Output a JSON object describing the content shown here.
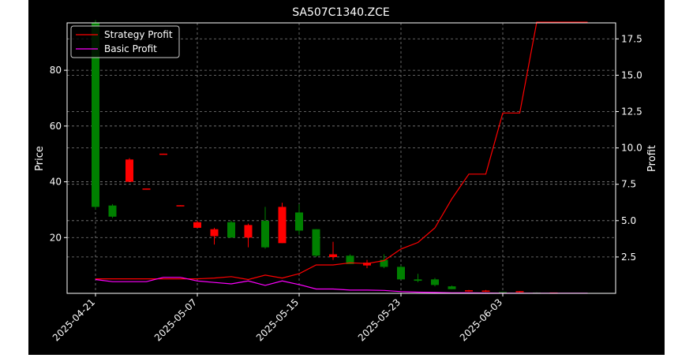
{
  "chart_data": {
    "type": "candlestick",
    "title": "SA507C1340.ZCE",
    "ylabel_left": "Price",
    "ylabel_right": "Profit",
    "x_tick_labels": [
      "2025-04-21",
      "2025-05-07",
      "2025-05-15",
      "2025-05-23",
      "2025-06-03"
    ],
    "x_tick_index": [
      0,
      6,
      12,
      18,
      24
    ],
    "y_left_ticks": [
      20,
      40,
      60,
      80
    ],
    "y_left_lim": [
      0,
      97
    ],
    "y_right_ticks": [
      "2.5",
      "5.0",
      "7.5",
      "10.0",
      "12.5",
      "15.0",
      "17.5"
    ],
    "y_right_lim": [
      0,
      18.6
    ],
    "grid": true,
    "legend_position": "top-left",
    "colors": {
      "up": "#ff0000",
      "down": "#008000",
      "strategy": "#ff0000",
      "basic": "#ff00ff",
      "grid": "#7f7f7f",
      "axes": "#ffffff"
    },
    "candles": [
      {
        "i": 0,
        "open": 97,
        "high": 98,
        "low": 30,
        "close": 31
      },
      {
        "i": 1,
        "open": 31.5,
        "high": 32,
        "low": 27,
        "close": 27.5
      },
      {
        "i": 2,
        "open": 40,
        "high": 48.5,
        "low": 40,
        "close": 48
      },
      {
        "i": 3,
        "open": 37.4,
        "high": 37.6,
        "low": 37.3,
        "close": 37.6
      },
      {
        "i": 4,
        "open": 49.9,
        "high": 50.1,
        "low": 49.8,
        "close": 50.1
      },
      {
        "i": 5,
        "open": 31.4,
        "high": 31.6,
        "low": 31.3,
        "close": 31.6
      },
      {
        "i": 6,
        "open": 23.5,
        "high": 26,
        "low": 23.5,
        "close": 25.5
      },
      {
        "i": 7,
        "open": 20.5,
        "high": 23.5,
        "low": 17.5,
        "close": 23
      },
      {
        "i": 8,
        "open": 25.5,
        "high": 26,
        "low": 20,
        "close": 20
      },
      {
        "i": 9,
        "open": 20,
        "high": 25,
        "low": 16.5,
        "close": 24.5
      },
      {
        "i": 10,
        "open": 26,
        "high": 31,
        "low": 16,
        "close": 16.5
      },
      {
        "i": 11,
        "open": 18,
        "high": 32.5,
        "low": 18,
        "close": 31
      },
      {
        "i": 12,
        "open": 29,
        "high": 32,
        "low": 21,
        "close": 22.5
      },
      {
        "i": 13,
        "open": 23,
        "high": 23,
        "low": 13,
        "close": 13.5
      },
      {
        "i": 14,
        "open": 13,
        "high": 18.5,
        "low": 12,
        "close": 14
      },
      {
        "i": 15,
        "open": 13.5,
        "high": 14,
        "low": 10.5,
        "close": 10.5
      },
      {
        "i": 16,
        "open": 10,
        "high": 12,
        "low": 9,
        "close": 11
      },
      {
        "i": 17,
        "open": 12,
        "high": 14,
        "low": 9,
        "close": 9.5
      },
      {
        "i": 18,
        "open": 9.5,
        "high": 10,
        "low": 5,
        "close": 5
      },
      {
        "i": 19,
        "open": 5,
        "high": 7,
        "low": 4,
        "close": 4.5
      },
      {
        "i": 20,
        "open": 5,
        "high": 5.5,
        "low": 2.5,
        "close": 3
      },
      {
        "i": 21,
        "open": 2.5,
        "high": 2.8,
        "low": 1.5,
        "close": 1.5
      },
      {
        "i": 22,
        "open": 0.8,
        "high": 1.2,
        "low": 0.6,
        "close": 1.1
      },
      {
        "i": 23,
        "open": 0.8,
        "high": 1.2,
        "low": 0.5,
        "close": 1.0
      },
      {
        "i": 24,
        "open": 0.5,
        "high": 0.6,
        "low": 0.3,
        "close": 0.3
      },
      {
        "i": 25,
        "open": 0.4,
        "high": 0.8,
        "low": 0.3,
        "close": 0.8
      },
      {
        "i": 26,
        "open": 0.3,
        "high": 0.4,
        "low": 0.2,
        "close": 0.2
      },
      {
        "i": 27,
        "open": 0.2,
        "high": 0.3,
        "low": 0.15,
        "close": 0.3
      }
    ],
    "series": [
      {
        "name": "Strategy Profit",
        "x": [
          0,
          1,
          2,
          3,
          4,
          5,
          6,
          7,
          8,
          9,
          10,
          11,
          12,
          13,
          14,
          15,
          16,
          17,
          18,
          19,
          20,
          21,
          22,
          23,
          24,
          25,
          26,
          27,
          28,
          29
        ],
        "values": [
          1.0,
          1.0,
          1.0,
          1.0,
          1.0,
          1.0,
          1.0,
          1.05,
          1.15,
          0.95,
          1.25,
          1.05,
          1.35,
          1.95,
          1.95,
          2.1,
          2.05,
          2.25,
          3.05,
          3.5,
          4.5,
          6.5,
          8.2,
          8.2,
          12.4,
          12.4,
          18.65,
          18.65,
          18.65,
          18.65
        ]
      },
      {
        "name": "Basic Profit",
        "x": [
          0,
          1,
          2,
          3,
          4,
          5,
          6,
          7,
          8,
          9,
          10,
          11,
          12,
          13,
          14,
          15,
          16,
          17,
          18,
          19,
          20,
          21,
          22,
          23,
          24,
          25,
          26,
          27,
          28,
          29
        ],
        "values": [
          0.95,
          0.8,
          0.8,
          0.8,
          1.1,
          1.1,
          0.85,
          0.75,
          0.65,
          0.85,
          0.55,
          0.85,
          0.6,
          0.3,
          0.3,
          0.22,
          0.22,
          0.2,
          0.12,
          0.08,
          0.06,
          0.04,
          0.03,
          0.02,
          0.015,
          0.01,
          0.01,
          0.01,
          0.01,
          0.01
        ]
      }
    ]
  }
}
